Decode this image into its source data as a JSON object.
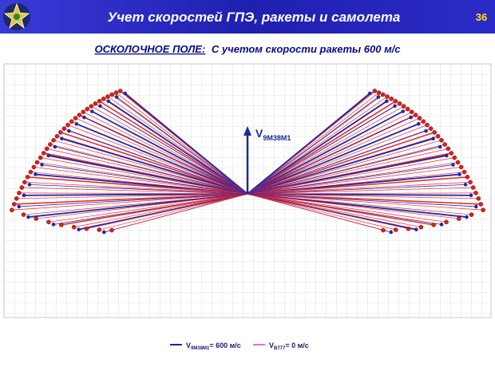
{
  "header": {
    "title": "Учет скоростей ГПЭ, ракеты и самолета",
    "page_number": "36"
  },
  "subtitle": {
    "lead": "ОСКОЛОЧНОЕ ПОЛЕ:",
    "text": "С учетом скорости ракеты 600 м/с"
  },
  "vector_label": {
    "symbol": "V",
    "subscript": "9M38M1"
  },
  "legend": [
    {
      "symbol": "V",
      "subscript": "9M38M1",
      "text": "= 600 м/с",
      "color": "#1a2a9a"
    },
    {
      "symbol": "V",
      "subscript": "B777",
      "text": "= 0 м/с",
      "color": "#ff66cc"
    }
  ]
}
